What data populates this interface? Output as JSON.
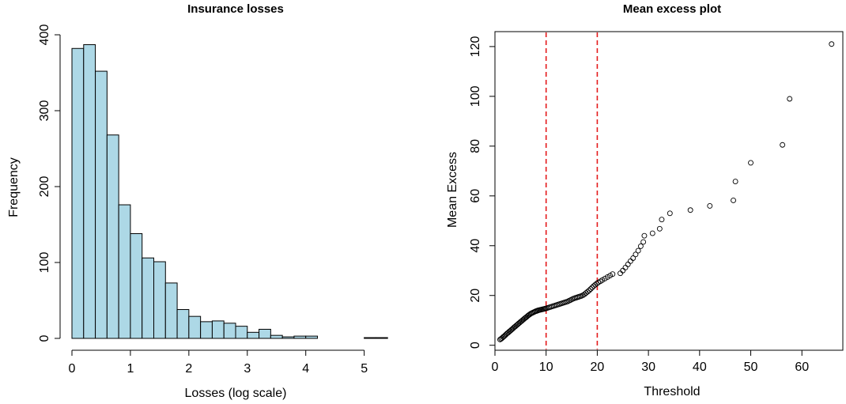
{
  "chart_data": [
    {
      "type": "bar",
      "title": "Insurance losses",
      "xlabel": "Losses (log scale)",
      "ylabel": "Frequency",
      "xlim": [
        0,
        5.6
      ],
      "ylim": [
        0,
        400
      ],
      "bin_width": 0.2,
      "bin_start": 0,
      "values": [
        382,
        387,
        352,
        268,
        176,
        138,
        106,
        101,
        73,
        38,
        29,
        22,
        23,
        20,
        16,
        8,
        12,
        4,
        2,
        3,
        3,
        0,
        0,
        0,
        0,
        1,
        1,
        0
      ],
      "x_ticks": [
        0,
        1,
        2,
        3,
        4,
        5
      ],
      "y_ticks": [
        0,
        100,
        200,
        300,
        400
      ],
      "grid": false
    },
    {
      "type": "scatter",
      "title": "Mean excess plot",
      "xlabel": "Threshold",
      "ylabel": "Mean Excess",
      "xlim": [
        0,
        68
      ],
      "ylim": [
        -2,
        126
      ],
      "x_ticks": [
        0,
        10,
        20,
        30,
        40,
        50,
        60
      ],
      "y_ticks": [
        0,
        20,
        40,
        60,
        80,
        100,
        120
      ],
      "reference_lines_x": [
        10,
        20
      ],
      "reference_line_color": "#e41a1c",
      "grid": false,
      "points": [
        [
          1.0,
          2.3
        ],
        [
          1.2,
          2.6
        ],
        [
          1.4,
          2.9
        ],
        [
          1.6,
          3.3
        ],
        [
          1.8,
          3.6
        ],
        [
          2.0,
          4.0
        ],
        [
          2.2,
          4.4
        ],
        [
          2.4,
          4.8
        ],
        [
          2.6,
          5.1
        ],
        [
          2.8,
          5.5
        ],
        [
          3.0,
          5.8
        ],
        [
          3.2,
          6.2
        ],
        [
          3.4,
          6.5
        ],
        [
          3.6,
          6.9
        ],
        [
          3.8,
          7.3
        ],
        [
          4.0,
          7.6
        ],
        [
          4.2,
          8.0
        ],
        [
          4.4,
          8.3
        ],
        [
          4.6,
          8.7
        ],
        [
          4.8,
          9.0
        ],
        [
          5.0,
          9.4
        ],
        [
          5.2,
          9.7
        ],
        [
          5.4,
          10.1
        ],
        [
          5.6,
          10.4
        ],
        [
          5.8,
          10.8
        ],
        [
          6.0,
          11.1
        ],
        [
          6.2,
          11.4
        ],
        [
          6.4,
          11.8
        ],
        [
          6.6,
          12.1
        ],
        [
          6.8,
          12.4
        ],
        [
          7.0,
          12.7
        ],
        [
          7.2,
          12.9
        ],
        [
          7.4,
          13.1
        ],
        [
          7.6,
          13.3
        ],
        [
          7.8,
          13.5
        ],
        [
          8.0,
          13.7
        ],
        [
          8.2,
          13.8
        ],
        [
          8.4,
          14.0
        ],
        [
          8.6,
          14.1
        ],
        [
          8.8,
          14.2
        ],
        [
          9.0,
          14.3
        ],
        [
          9.2,
          14.4
        ],
        [
          9.4,
          14.5
        ],
        [
          9.6,
          14.6
        ],
        [
          9.8,
          14.7
        ],
        [
          10.0,
          14.8
        ],
        [
          10.3,
          15.0
        ],
        [
          10.6,
          15.2
        ],
        [
          10.9,
          15.4
        ],
        [
          11.2,
          15.6
        ],
        [
          11.5,
          15.8
        ],
        [
          11.8,
          16.0
        ],
        [
          12.1,
          16.2
        ],
        [
          12.4,
          16.4
        ],
        [
          12.7,
          16.6
        ],
        [
          13.0,
          16.8
        ],
        [
          13.3,
          17.0
        ],
        [
          13.6,
          17.2
        ],
        [
          13.9,
          17.4
        ],
        [
          14.2,
          17.6
        ],
        [
          14.5,
          17.9
        ],
        [
          14.8,
          18.2
        ],
        [
          15.1,
          18.5
        ],
        [
          15.4,
          18.8
        ],
        [
          15.7,
          19.0
        ],
        [
          16.0,
          19.2
        ],
        [
          16.3,
          19.4
        ],
        [
          16.6,
          19.6
        ],
        [
          16.9,
          19.8
        ],
        [
          17.2,
          20.1
        ],
        [
          17.5,
          20.5
        ],
        [
          17.8,
          21.0
        ],
        [
          18.1,
          21.5
        ],
        [
          18.4,
          22.0
        ],
        [
          18.7,
          22.6
        ],
        [
          19.0,
          23.2
        ],
        [
          19.3,
          23.8
        ],
        [
          19.6,
          24.3
        ],
        [
          19.9,
          24.8
        ],
        [
          20.2,
          25.2
        ],
        [
          20.6,
          25.7
        ],
        [
          21.0,
          26.2
        ],
        [
          21.5,
          26.8
        ],
        [
          22.0,
          27.4
        ],
        [
          22.5,
          28.0
        ],
        [
          23.0,
          28.6
        ],
        [
          24.5,
          28.9
        ],
        [
          25.0,
          30.0
        ],
        [
          25.5,
          31.2
        ],
        [
          26.0,
          32.5
        ],
        [
          26.5,
          33.8
        ],
        [
          27.0,
          35.0
        ],
        [
          27.5,
          36.5
        ],
        [
          28.0,
          38.0
        ],
        [
          28.5,
          39.8
        ],
        [
          29.0,
          41.5
        ],
        [
          29.2,
          44.0
        ],
        [
          30.8,
          45.0
        ],
        [
          32.2,
          46.8
        ],
        [
          32.6,
          50.5
        ],
        [
          34.2,
          53.0
        ],
        [
          38.2,
          54.3
        ],
        [
          42.0,
          56.0
        ],
        [
          46.6,
          58.2
        ],
        [
          47.0,
          65.8
        ],
        [
          50.0,
          73.3
        ],
        [
          56.2,
          80.5
        ],
        [
          57.6,
          99.0
        ],
        [
          65.8,
          121.0
        ]
      ]
    }
  ]
}
